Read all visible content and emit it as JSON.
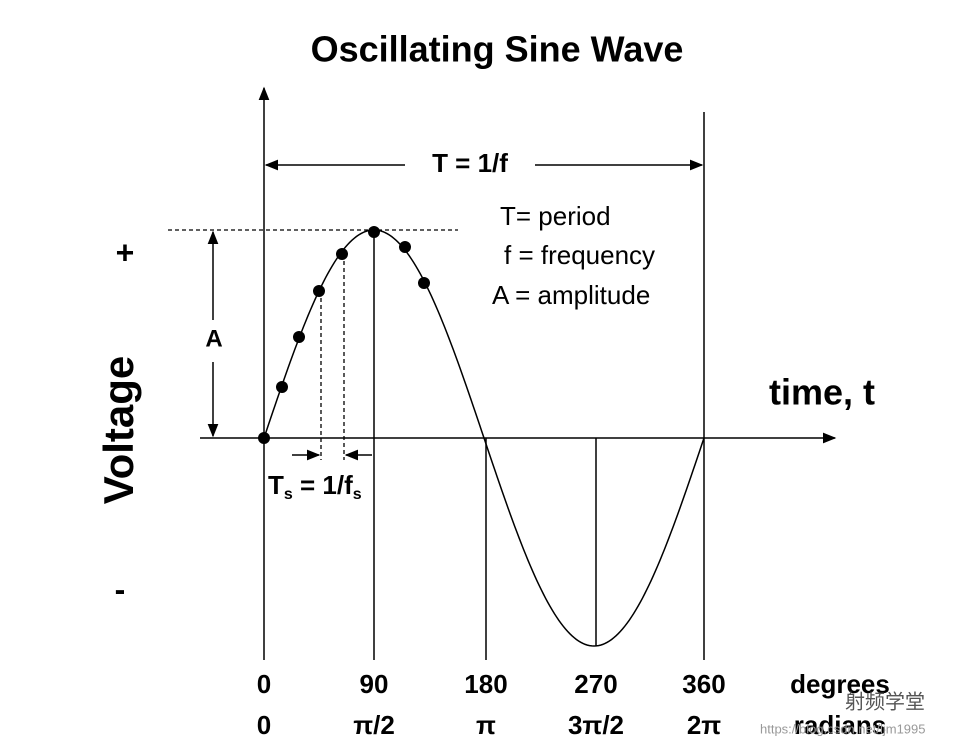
{
  "title": "Oscillating Sine Wave",
  "period_label": "T = 1/f",
  "legend": [
    "T= period",
    "f = frequency",
    "A = amplitude"
  ],
  "amplitude_label": "A",
  "y_axis": {
    "label": "Voltage",
    "plus": "+",
    "minus": "-"
  },
  "x_axis": {
    "label": "time, t",
    "degrees": {
      "ticks": [
        "0",
        "90",
        "180",
        "270",
        "360"
      ],
      "unit": "degrees"
    },
    "radians": {
      "ticks": [
        "0",
        "π/2",
        "π",
        "3π/2",
        "2π"
      ],
      "unit": "radians"
    }
  },
  "sample_label": [
    "T",
    "s",
    " = 1/f",
    "s"
  ],
  "watermark": [
    "射频学堂",
    "https://blog.csdn.net/ljm1995"
  ]
}
